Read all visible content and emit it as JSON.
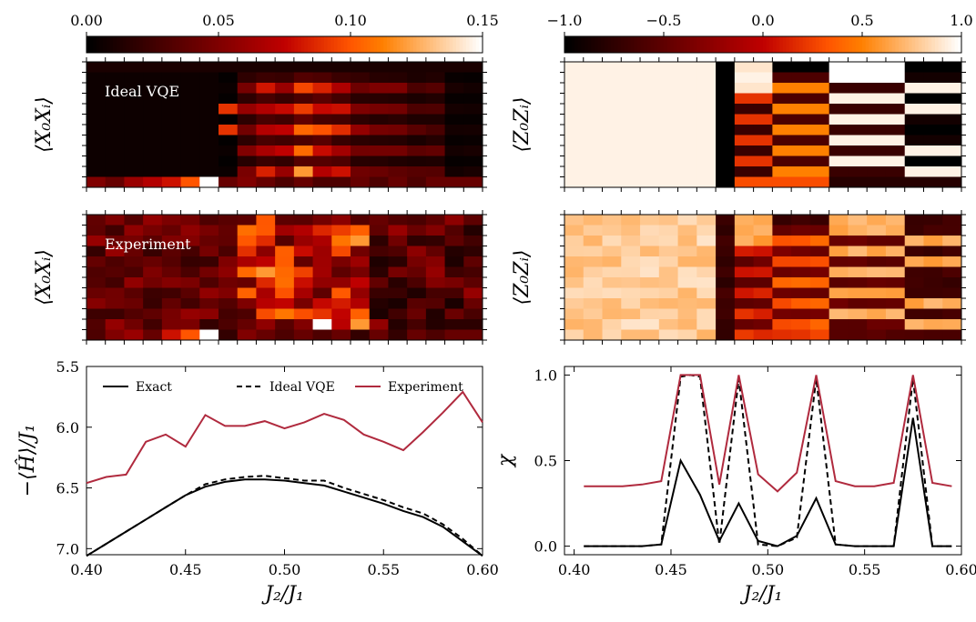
{
  "colors": {
    "experiment": "#b02a3e",
    "exact": "#000000",
    "ideal": "#000000",
    "annotation_text": "#ffffff"
  },
  "colormap": "gist_heat",
  "chart_data": [
    {
      "id": "xx_colorbar",
      "type": "colorbar",
      "range": [
        0.0,
        0.15
      ],
      "ticks": [
        "0.00",
        "0.05",
        "0.10",
        "0.15"
      ],
      "tick_values": [
        0.0,
        0.05,
        0.1,
        0.15
      ]
    },
    {
      "id": "zz_colorbar",
      "type": "colorbar",
      "range": [
        -1.0,
        1.0
      ],
      "ticks": [
        "−1.0",
        "−0.5",
        "0.0",
        "0.5",
        "1.0"
      ],
      "tick_values": [
        -1.0,
        -0.5,
        0.0,
        0.5,
        1.0
      ]
    },
    {
      "id": "xx_ideal",
      "type": "heatmap",
      "ylabel": "⟨X₀Xᵢ⟩",
      "annotation": "Ideal VQE",
      "x_range": [
        0.4,
        0.6
      ],
      "cols": 21,
      "rows": 12,
      "vmin": 0.0,
      "vmax": 0.15,
      "col_profile_top": [
        0.01,
        0.01,
        0.01,
        0.01,
        0.01,
        0.01,
        0.01,
        0.01,
        0.01,
        0.01,
        0.01,
        0.01,
        0.01,
        0.01,
        0.01,
        0.01,
        0.01,
        0.01,
        0.01,
        0.01,
        0.01
      ],
      "col_profile_mid": [
        0.005,
        0.005,
        0.005,
        0.005,
        0.005,
        0.005,
        0.005,
        0.005,
        0.06,
        0.09,
        0.08,
        0.11,
        0.1,
        0.09,
        0.06,
        0.05,
        0.05,
        0.04,
        0.04,
        0.01,
        0.01
      ],
      "bottom_row": [
        0.05,
        0.04,
        0.06,
        0.07,
        0.08,
        0.1,
        0.15,
        0.04,
        0.05,
        0.04,
        0.03,
        0.04,
        0.03,
        0.03,
        0.04,
        0.03,
        0.04,
        0.03,
        0.04,
        0.04,
        0.04
      ]
    },
    {
      "id": "xx_experiment",
      "type": "heatmap",
      "ylabel": "⟨X₀Xᵢ⟩",
      "annotation": "Experiment",
      "x_range": [
        0.4,
        0.6
      ],
      "cols": 21,
      "rows": 12,
      "vmin": 0.0,
      "vmax": 0.15,
      "noisy": true,
      "bottom_row": [
        0.03,
        0.05,
        0.06,
        0.04,
        0.08,
        0.1,
        0.15,
        0.02,
        0.05,
        0.04,
        0.03,
        0.04,
        0.03,
        0.04,
        0.02,
        0.04,
        0.02,
        0.04,
        0.03,
        0.04,
        0.04
      ]
    },
    {
      "id": "zz_ideal",
      "type": "heatmap",
      "ylabel": "⟨Z₀Zᵢ⟩",
      "x_range": [
        0.4,
        0.6
      ],
      "cols": 21,
      "rows": 12,
      "vmin": -1.0,
      "vmax": 1.0
    },
    {
      "id": "zz_experiment",
      "type": "heatmap",
      "ylabel": "⟨Z₀Zᵢ⟩",
      "x_range": [
        0.4,
        0.6
      ],
      "cols": 21,
      "rows": 12,
      "vmin": -1.0,
      "vmax": 1.0,
      "noisy": true
    },
    {
      "id": "energy",
      "type": "line",
      "xlabel": "J₂/J₁",
      "ylabel": "−⟨Ĥ⟩/J₁",
      "xlim": [
        0.4,
        0.6
      ],
      "ylim": [
        7.05,
        5.5
      ],
      "y_inverted": true,
      "x_ticks": [
        "0.40",
        "0.45",
        "0.50",
        "0.55",
        "0.60"
      ],
      "x_tick_values": [
        0.4,
        0.45,
        0.5,
        0.55,
        0.6
      ],
      "y_ticks": [
        "5.5",
        "6.0",
        "6.5",
        "7.0"
      ],
      "y_tick_values": [
        5.5,
        6.0,
        6.5,
        7.0
      ],
      "legend_position": "top",
      "x": [
        0.4,
        0.41,
        0.42,
        0.43,
        0.44,
        0.45,
        0.46,
        0.47,
        0.48,
        0.49,
        0.5,
        0.51,
        0.52,
        0.53,
        0.54,
        0.55,
        0.56,
        0.57,
        0.58,
        0.59,
        0.6
      ],
      "series": [
        {
          "name": "Exact",
          "style": "solid",
          "color": "#000000",
          "values": [
            7.06,
            6.96,
            6.86,
            6.76,
            6.66,
            6.56,
            6.49,
            6.45,
            6.43,
            6.43,
            6.44,
            6.46,
            6.48,
            6.53,
            6.58,
            6.63,
            6.69,
            6.74,
            6.82,
            6.94,
            7.06
          ]
        },
        {
          "name": "Ideal VQE",
          "style": "dashed",
          "color": "#000000",
          "values": [
            7.06,
            6.96,
            6.86,
            6.76,
            6.66,
            6.56,
            6.47,
            6.43,
            6.41,
            6.4,
            6.42,
            6.44,
            6.44,
            6.5,
            6.55,
            6.6,
            6.66,
            6.71,
            6.8,
            6.92,
            7.06
          ]
        },
        {
          "name": "Experiment",
          "style": "solid",
          "color": "#b02a3e",
          "values": [
            6.46,
            6.41,
            6.39,
            6.12,
            6.06,
            6.16,
            5.9,
            5.99,
            5.99,
            5.95,
            6.01,
            5.96,
            5.89,
            5.94,
            6.06,
            6.12,
            6.19,
            6.04,
            5.88,
            5.71,
            5.96
          ]
        }
      ]
    },
    {
      "id": "chi",
      "type": "line",
      "xlabel": "J₂/J₁",
      "ylabel": "χ",
      "xlim": [
        0.395,
        0.6
      ],
      "ylim": [
        -0.05,
        1.05
      ],
      "x_ticks": [
        "0.40",
        "0.45",
        "0.50",
        "0.55",
        "0.60"
      ],
      "x_tick_values": [
        0.4,
        0.45,
        0.5,
        0.55,
        0.6
      ],
      "y_ticks": [
        "0.0",
        "0.5",
        "1.0"
      ],
      "y_tick_values": [
        0.0,
        0.5,
        1.0
      ],
      "x": [
        0.405,
        0.415,
        0.425,
        0.435,
        0.445,
        0.455,
        0.46,
        0.465,
        0.475,
        0.485,
        0.495,
        0.505,
        0.515,
        0.525,
        0.535,
        0.545,
        0.555,
        0.565,
        0.575,
        0.585,
        0.595
      ],
      "series": [
        {
          "name": "Exact",
          "style": "solid",
          "color": "#000000",
          "values": [
            0.0,
            0.0,
            0.0,
            0.0,
            0.01,
            0.5,
            0.4,
            0.3,
            0.03,
            0.25,
            0.03,
            0.0,
            0.06,
            0.28,
            0.01,
            0.0,
            0.0,
            0.0,
            0.75,
            0.0,
            0.0
          ]
        },
        {
          "name": "Ideal VQE",
          "style": "dashed",
          "color": "#000000",
          "values": [
            0.0,
            0.0,
            0.0,
            0.0,
            0.01,
            0.99,
            1.0,
            0.99,
            0.01,
            0.98,
            0.01,
            0.0,
            0.05,
            0.98,
            0.01,
            0.0,
            0.0,
            0.0,
            0.98,
            0.0,
            0.0
          ]
        },
        {
          "name": "Experiment",
          "style": "solid",
          "color": "#b02a3e",
          "values": [
            0.35,
            0.35,
            0.35,
            0.36,
            0.38,
            1.0,
            1.0,
            1.0,
            0.36,
            1.0,
            0.42,
            0.32,
            0.43,
            1.0,
            0.38,
            0.35,
            0.35,
            0.37,
            1.0,
            0.37,
            0.35
          ]
        }
      ]
    }
  ]
}
